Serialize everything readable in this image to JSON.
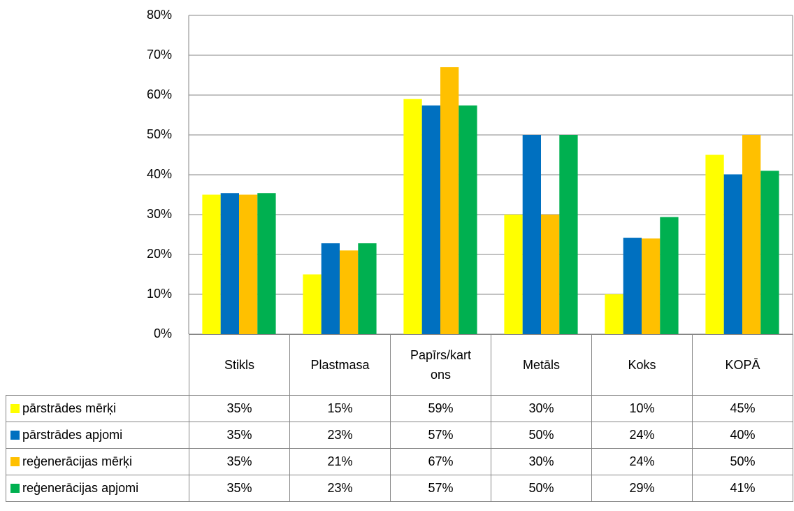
{
  "chart_data": {
    "type": "bar",
    "categories": [
      "Stikls",
      "Plastmasa",
      "Papīrs/kartons",
      "Metāls",
      "Koks",
      "KOPĀ"
    ],
    "series": [
      {
        "name": "pārstrādes mērķi",
        "color": "#ffff00",
        "values": [
          35,
          15,
          59,
          30,
          10,
          45
        ],
        "value_labels": [
          "35%",
          "15%",
          "59%",
          "30%",
          "10%",
          "45%"
        ]
      },
      {
        "name": "pārstrādes apjomi",
        "color": "#0070c0",
        "values": [
          35.4,
          22.8,
          57.4,
          50,
          24.2,
          40.1
        ],
        "value_labels": [
          "35%",
          "23%",
          "57%",
          "50%",
          "24%",
          "40%"
        ]
      },
      {
        "name": "reģenerācijas mērķi",
        "color": "#ffc000",
        "values": [
          35,
          21,
          67,
          30,
          24,
          50
        ],
        "value_labels": [
          "35%",
          "21%",
          "67%",
          "30%",
          "24%",
          "50%"
        ]
      },
      {
        "name": "reģenerācijas apjomi",
        "color": "#00b050",
        "values": [
          35.4,
          22.8,
          57.4,
          50,
          29.4,
          41
        ],
        "value_labels": [
          "35%",
          "23%",
          "57%",
          "50%",
          "29%",
          "41%"
        ]
      }
    ],
    "ylim": [
      0,
      80
    ],
    "yticks": [
      {
        "value": 0,
        "label": "0%"
      },
      {
        "value": 10,
        "label": "10%"
      },
      {
        "value": 20,
        "label": "20%"
      },
      {
        "value": 30,
        "label": "30%"
      },
      {
        "value": 40,
        "label": "40%"
      },
      {
        "value": 50,
        "label": "50%"
      },
      {
        "value": 60,
        "label": "60%"
      },
      {
        "value": 70,
        "label": "70%"
      },
      {
        "value": 80,
        "label": "80%"
      }
    ],
    "grid": true
  }
}
